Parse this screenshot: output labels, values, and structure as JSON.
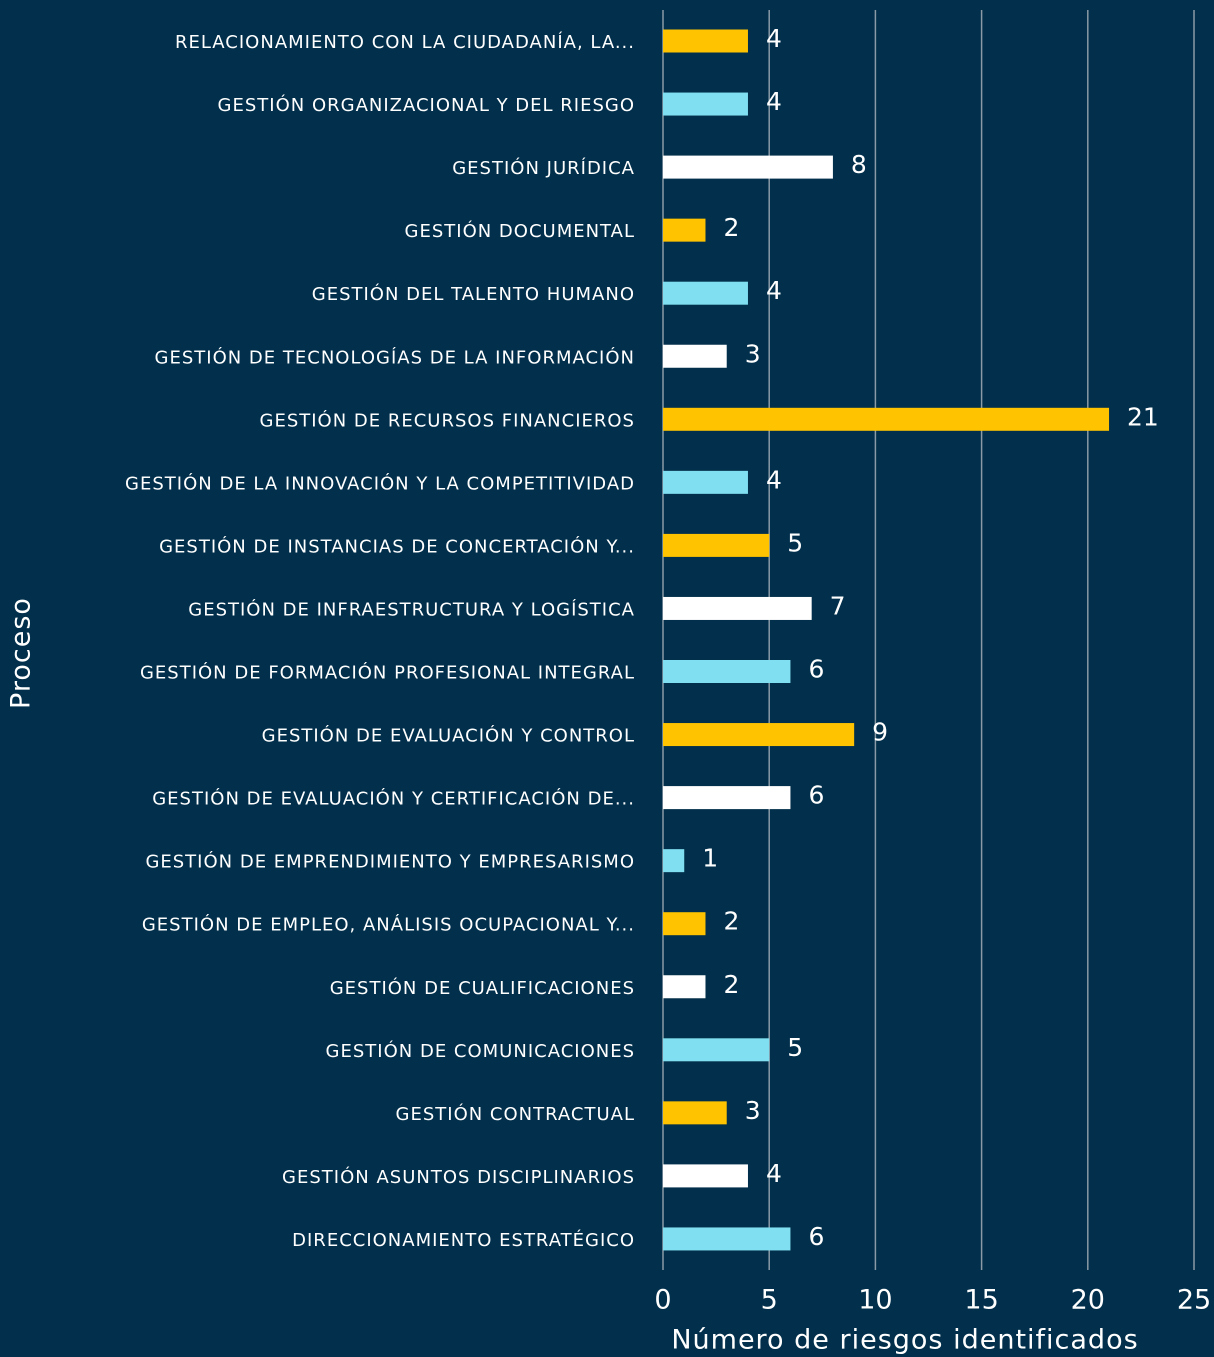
{
  "chart_data": {
    "type": "barh",
    "xlabel": "Número de riesgos identificados",
    "ylabel": "Proceso",
    "categories": [
      "RELACIONAMIENTO CON LA CIUDADANÍA, LA...",
      "GESTIÓN ORGANIZACIONAL Y DEL RIESGO",
      "GESTIÓN JURÍDICA",
      "GESTIÓN DOCUMENTAL",
      "GESTIÓN DEL TALENTO HUMANO",
      "GESTIÓN DE TECNOLOGÍAS DE LA INFORMACIÓN",
      "GESTIÓN DE RECURSOS FINANCIEROS",
      "GESTIÓN DE LA INNOVACIÓN Y LA COMPETITIVIDAD",
      "GESTIÓN DE INSTANCIAS DE CONCERTACIÓN Y...",
      "GESTIÓN DE INFRAESTRUCTURA Y LOGÍSTICA",
      "GESTIÓN DE FORMACIÓN PROFESIONAL INTEGRAL",
      "GESTIÓN DE EVALUACIÓN Y CONTROL",
      "GESTIÓN DE EVALUACIÓN Y CERTIFICACIÓN DE...",
      "GESTIÓN DE EMPRENDIMIENTO Y EMPRESARISMO",
      "GESTIÓN DE EMPLEO, ANÁLISIS OCUPACIONAL Y...",
      "GESTIÓN DE CUALIFICACIONES",
      "GESTIÓN DE COMUNICACIONES",
      "GESTIÓN CONTRACTUAL",
      "GESTIÓN ASUNTOS DISCIPLINARIOS",
      "DIRECCIONAMIENTO ESTRATÉGICO"
    ],
    "values": [
      4,
      4,
      8,
      2,
      4,
      3,
      21,
      4,
      5,
      7,
      6,
      9,
      6,
      1,
      2,
      2,
      5,
      3,
      4,
      6
    ],
    "colors": [
      "#ffc300",
      "#80dff0",
      "#ffffff",
      "#ffc300",
      "#80dff0",
      "#ffffff",
      "#ffc300",
      "#80dff0",
      "#ffc300",
      "#ffffff",
      "#80dff0",
      "#ffc300",
      "#ffffff",
      "#80dff0",
      "#ffc300",
      "#ffffff",
      "#80dff0",
      "#ffc300",
      "#ffffff",
      "#80dff0"
    ],
    "xlim": [
      0,
      25
    ],
    "xticks": [
      0,
      5,
      10,
      15,
      20,
      25
    ],
    "grid": true
  }
}
